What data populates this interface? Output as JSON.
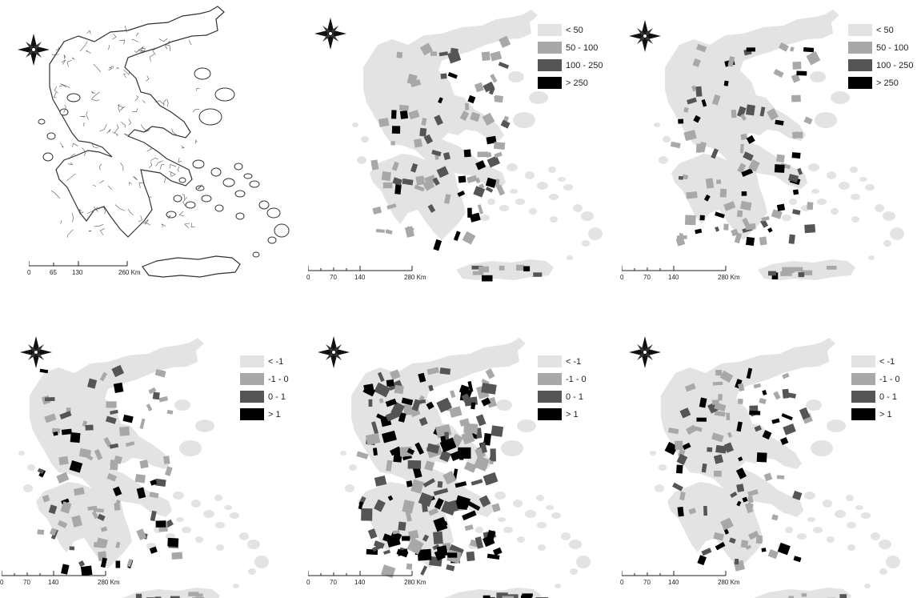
{
  "colors": {
    "very_low": "#e3e3e3",
    "low": "#a8a8a8",
    "high": "#555555",
    "very_high": "#000000",
    "outline": "#333333"
  },
  "panels": [
    {
      "style": "outline",
      "legend": [],
      "scale_ticks": [
        "0",
        "65",
        "130",
        "260 Km"
      ]
    },
    {
      "style": "choropleth",
      "legend": [
        {
          "label": "< 50",
          "color": "#e3e3e3"
        },
        {
          "label": "50 - 100",
          "color": "#a8a8a8"
        },
        {
          "label": "100 - 250",
          "color": "#555555"
        },
        {
          "label": "> 250",
          "color": "#000000"
        }
      ],
      "scale_ticks": [
        "0",
        "70",
        "140",
        "280 Km"
      ]
    },
    {
      "style": "choropleth",
      "legend": [
        {
          "label": "< 50",
          "color": "#e3e3e3"
        },
        {
          "label": "50 - 100",
          "color": "#a8a8a8"
        },
        {
          "label": "100 - 250",
          "color": "#555555"
        },
        {
          "label": "> 250",
          "color": "#000000"
        }
      ],
      "scale_ticks": [
        "0",
        "70",
        "140",
        "280 Km"
      ]
    },
    {
      "style": "choropleth",
      "legend": [
        {
          "label": "< -1",
          "color": "#e3e3e3"
        },
        {
          "label": "-1 - 0",
          "color": "#a8a8a8"
        },
        {
          "label": "0 - 1",
          "color": "#555555"
        },
        {
          "label": "> 1",
          "color": "#000000"
        }
      ],
      "scale_ticks": [
        "0",
        "70",
        "140",
        "280 Km"
      ]
    },
    {
      "style": "choropleth-dense",
      "legend": [
        {
          "label": "< -1",
          "color": "#e3e3e3"
        },
        {
          "label": "-1 - 0",
          "color": "#a8a8a8"
        },
        {
          "label": "0 - 1",
          "color": "#555555"
        },
        {
          "label": "> 1",
          "color": "#000000"
        }
      ],
      "scale_ticks": [
        "0",
        "70",
        "140",
        "280 Km"
      ]
    },
    {
      "style": "choropleth",
      "legend": [
        {
          "label": "< -1",
          "color": "#e3e3e3"
        },
        {
          "label": "-1 - 0",
          "color": "#a8a8a8"
        },
        {
          "label": "0 - 1",
          "color": "#555555"
        },
        {
          "label": "> 1",
          "color": "#000000"
        }
      ],
      "scale_ticks": [
        "0",
        "70",
        "140",
        "280 Km"
      ]
    }
  ]
}
